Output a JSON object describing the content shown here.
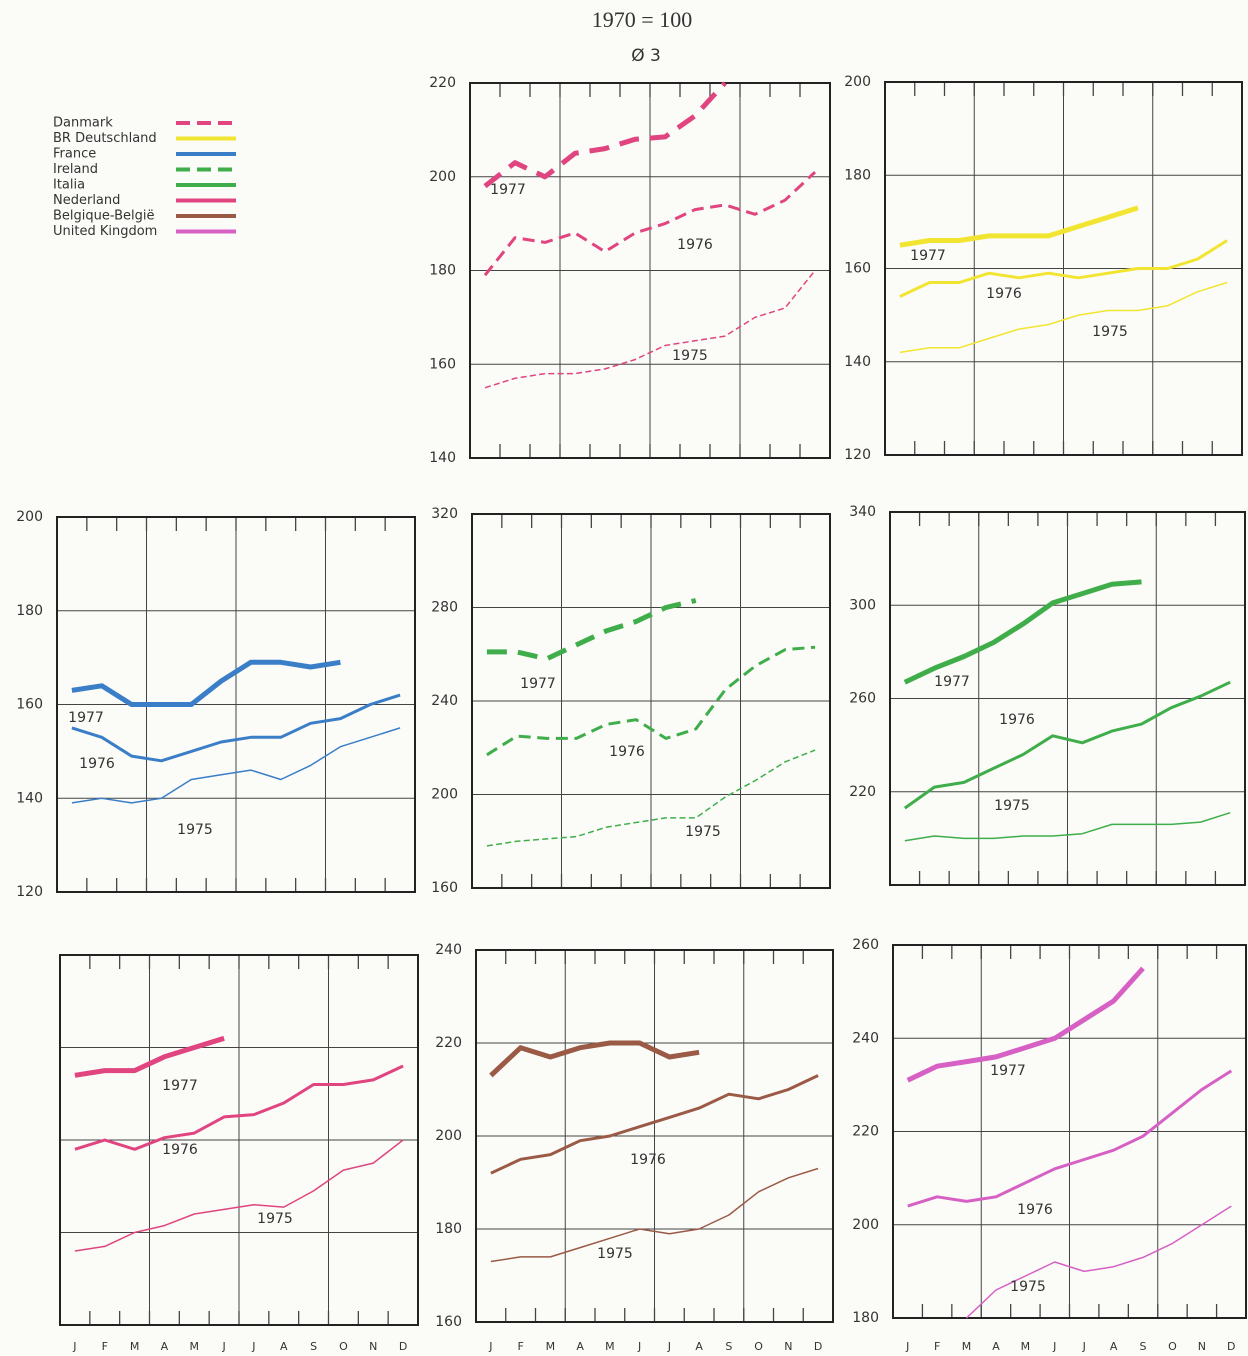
{
  "header": {
    "title": "1970 = 100",
    "subtitle": "Ø 3"
  },
  "categories": [
    "J",
    "F",
    "M",
    "A",
    "M",
    "J",
    "J",
    "A",
    "S",
    "O",
    "N",
    "D"
  ],
  "chart_data": [
    {
      "type": "line",
      "name": "Danmark",
      "color": "#e0457f",
      "dashed": true,
      "ylim": [
        140,
        220
      ],
      "yticks": [
        140,
        160,
        180,
        200,
        220
      ],
      "grid": true,
      "series": [
        {
          "name": "1977",
          "values": [
            198,
            203,
            200,
            205,
            206,
            208,
            208.5,
            213,
            220,
            null,
            null,
            null
          ]
        },
        {
          "name": "1976",
          "values": [
            179,
            187,
            186,
            188,
            184,
            188,
            190,
            193,
            194,
            192,
            195,
            201
          ]
        },
        {
          "name": "1975",
          "values": [
            155,
            157,
            158,
            158,
            159,
            161,
            164,
            165,
            166,
            170,
            172,
            180
          ]
        }
      ]
    },
    {
      "type": "line",
      "name": "BR Deutschland",
      "color": "#f2e531",
      "dashed": false,
      "ylim": [
        120,
        200
      ],
      "yticks": [
        120,
        140,
        160,
        180,
        200
      ],
      "grid": true,
      "series": [
        {
          "name": "1977",
          "values": [
            165,
            166,
            166,
            167,
            167,
            167,
            169,
            171,
            173,
            null,
            null,
            null
          ]
        },
        {
          "name": "1976",
          "values": [
            154,
            157,
            157,
            159,
            158,
            159,
            158,
            159,
            160,
            160,
            162,
            166
          ]
        },
        {
          "name": "1975",
          "values": [
            142,
            143,
            143,
            145,
            147,
            148,
            150,
            151,
            151,
            152,
            155,
            157
          ]
        }
      ]
    },
    {
      "type": "line",
      "name": "France",
      "color": "#3a7ec8",
      "dashed": false,
      "ylim": [
        120,
        200
      ],
      "yticks": [
        120,
        140,
        160,
        180,
        200
      ],
      "grid": true,
      "series": [
        {
          "name": "1977",
          "values": [
            163,
            164,
            160,
            160,
            160,
            165,
            169,
            169,
            168,
            169,
            null,
            null
          ]
        },
        {
          "name": "1976",
          "values": [
            155,
            153,
            149,
            148,
            150,
            152,
            153,
            153,
            156,
            157,
            160,
            162
          ]
        },
        {
          "name": "1975",
          "values": [
            139,
            140,
            139,
            140,
            144,
            145,
            146,
            144,
            147,
            151,
            153,
            155
          ]
        }
      ]
    },
    {
      "type": "line",
      "name": "Ireland",
      "color": "#3fae4a",
      "dashed": true,
      "ylim": [
        160,
        320
      ],
      "yticks": [
        160,
        200,
        240,
        280,
        320
      ],
      "grid": true,
      "series": [
        {
          "name": "1977",
          "values": [
            261,
            261,
            258,
            264,
            270,
            274,
            280,
            283,
            null,
            null,
            null,
            null
          ]
        },
        {
          "name": "1976",
          "values": [
            217,
            225,
            224,
            224,
            230,
            232,
            224,
            228,
            245,
            255,
            262,
            263
          ]
        },
        {
          "name": "1975",
          "values": [
            178,
            180,
            181,
            182,
            186,
            188,
            190,
            190,
            199,
            206,
            214,
            219
          ]
        }
      ]
    },
    {
      "type": "line",
      "name": "Italia",
      "color": "#3fae4a",
      "dashed": false,
      "ylim": [
        180,
        340
      ],
      "yticks": [
        220,
        260,
        300,
        340
      ],
      "grid": true,
      "series": [
        {
          "name": "1977",
          "values": [
            267,
            273,
            278,
            284,
            292,
            301,
            305,
            309,
            310,
            null,
            null,
            null
          ]
        },
        {
          "name": "1976",
          "values": [
            213,
            222,
            224,
            230,
            236,
            244,
            241,
            246,
            249,
            256,
            261,
            267
          ]
        },
        {
          "name": "1975",
          "values": [
            199,
            201,
            200,
            200,
            201,
            201,
            202,
            206,
            206,
            206,
            207,
            211
          ]
        }
      ]
    },
    {
      "type": "line",
      "name": "Nederland",
      "color": "#e0457f",
      "dashed": false,
      "ylim": [
        160,
        240
      ],
      "yticks": [
        180,
        200,
        220
      ],
      "show_ytick_labels": false,
      "grid": true,
      "series": [
        {
          "name": "1977",
          "values": [
            214,
            215,
            215,
            218,
            220,
            222,
            null,
            null,
            null,
            null,
            null,
            null
          ]
        },
        {
          "name": "1976",
          "values": [
            198,
            200,
            198,
            200.5,
            201.5,
            205,
            205.5,
            208,
            212,
            212,
            213,
            216
          ]
        },
        {
          "name": "1975",
          "values": [
            176,
            177,
            180,
            181.5,
            184,
            185,
            186,
            185.5,
            189,
            193.5,
            195,
            200
          ]
        }
      ]
    },
    {
      "type": "line",
      "name": "Belgique-België",
      "color": "#9a5a46",
      "dashed": false,
      "ylim": [
        160,
        240
      ],
      "yticks": [
        160,
        180,
        200,
        220,
        240
      ],
      "grid": true,
      "series": [
        {
          "values": [
            213,
            219,
            217,
            219,
            220,
            220,
            217,
            218,
            null,
            null,
            null,
            null
          ]
        },
        {
          "name": "1976",
          "values": [
            192,
            195,
            196,
            199,
            200,
            202,
            204,
            206,
            209,
            208,
            210,
            213
          ]
        },
        {
          "name": "1975",
          "values": [
            173,
            174,
            174,
            176,
            178,
            180,
            179,
            180,
            183,
            188,
            191,
            193
          ]
        }
      ]
    },
    {
      "type": "line",
      "name": "United Kingdom",
      "color": "#d660c4",
      "dashed": false,
      "ylim": [
        180,
        260
      ],
      "yticks": [
        180,
        200,
        220,
        240,
        260
      ],
      "grid": true,
      "series": [
        {
          "name": "1977",
          "values": [
            231,
            234,
            235,
            236,
            238,
            240,
            244,
            248,
            255,
            null,
            null,
            null
          ]
        },
        {
          "name": "1976",
          "values": [
            204,
            206,
            205,
            206,
            209,
            212,
            214,
            216,
            219,
            224,
            229,
            233
          ]
        },
        {
          "name": "1975",
          "values": [
            null,
            null,
            180,
            186,
            189,
            192,
            190,
            191,
            193,
            196,
            200,
            204
          ]
        }
      ]
    }
  ]
}
